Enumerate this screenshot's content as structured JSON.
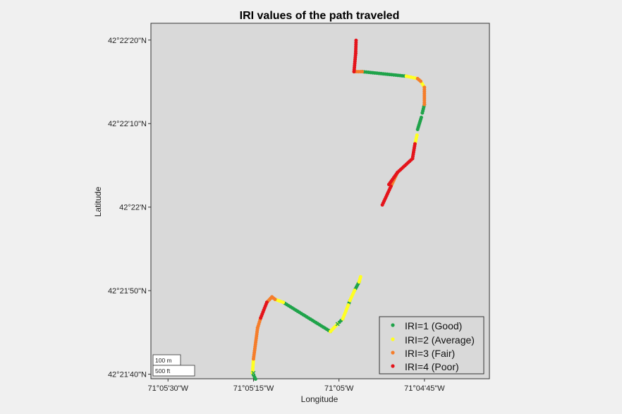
{
  "chart_data": {
    "type": "scatter",
    "title": "IRI values of the path traveled",
    "xlabel": "Longitude",
    "ylabel": "Latitude",
    "xlim": [
      -71.0925,
      -71.076
    ],
    "ylim": [
      42.36096,
      42.37278
    ],
    "x_ticks": [
      {
        "value": -71.091667,
        "label": "71°05'30\"W"
      },
      {
        "value": -71.0875,
        "label": "71°05'15\"W"
      },
      {
        "value": -71.083333,
        "label": "71°05'W"
      },
      {
        "value": -71.079167,
        "label": "71°04'45\"W"
      }
    ],
    "y_ticks": [
      {
        "value": 42.361111,
        "label": "42°21'40\"N"
      },
      {
        "value": 42.363889,
        "label": "42°21'50\"N"
      },
      {
        "value": 42.366667,
        "label": "42°22'N"
      },
      {
        "value": 42.369444,
        "label": "42°22'10\"N"
      },
      {
        "value": 42.372222,
        "label": "42°22'20\"N"
      }
    ],
    "grid": false,
    "legend_position": "bottom-right",
    "scale_bar": {
      "metric": "100 m",
      "imperial": "500 ft"
    },
    "series": [
      {
        "name": "IRI=1 (Good)",
        "color": "#1fa34a",
        "segments": [
          [
            [
              -71.0874,
              42.36095
            ],
            [
              -71.08755,
              42.36115
            ]
          ],
          [
            [
              -71.08605,
              42.3635
            ],
            [
              -71.08375,
              42.36253
            ]
          ],
          [
            [
              -71.0834,
              42.36278
            ],
            [
              -71.08315,
              42.36295
            ]
          ],
          [
            [
              -71.08288,
              42.36341
            ],
            [
              -71.0828,
              42.36356
            ]
          ],
          [
            [
              -71.08257,
              42.3639
            ],
            [
              -71.08235,
              42.36418
            ]
          ],
          [
            [
              -71.0822,
              42.37117
            ],
            [
              -71.08005,
              42.37102
            ]
          ],
          [
            [
              -71.07917,
              42.37008
            ],
            [
              -71.07927,
              42.3698
            ]
          ],
          [
            [
              -71.07932,
              42.36965
            ],
            [
              -71.0795,
              42.36925
            ]
          ]
        ]
      },
      {
        "name": "IRI=2 (Average)",
        "color": "#ffff22",
        "segments": [
          [
            [
              -71.08755,
              42.36115
            ],
            [
              -71.0875,
              42.36162
            ]
          ],
          [
            [
              -71.08645,
              42.3636
            ],
            [
              -71.08605,
              42.3635
            ]
          ],
          [
            [
              -71.08375,
              42.36253
            ],
            [
              -71.0834,
              42.36278
            ]
          ],
          [
            [
              -71.08315,
              42.36295
            ],
            [
              -71.08288,
              42.36341
            ]
          ],
          [
            [
              -71.0828,
              42.36356
            ],
            [
              -71.08257,
              42.3639
            ]
          ],
          [
            [
              -71.08235,
              42.36418
            ],
            [
              -71.08228,
              42.36435
            ]
          ],
          [
            [
              -71.08005,
              42.37102
            ],
            [
              -71.0795,
              42.37094
            ]
          ],
          [
            [
              -71.07935,
              42.37085
            ],
            [
              -71.07917,
              42.37065
            ]
          ],
          [
            [
              -71.07953,
              42.36906
            ],
            [
              -71.07963,
              42.36877
            ]
          ]
        ]
      },
      {
        "name": "IRI=3 (Fair)",
        "color": "#f57d2a",
        "segments": [
          [
            [
              -71.0875,
              42.36162
            ],
            [
              -71.0873,
              42.36265
            ]
          ],
          [
            [
              -71.0873,
              42.36265
            ],
            [
              -71.08715,
              42.36298
            ]
          ],
          [
            [
              -71.08685,
              42.3635
            ],
            [
              -71.0866,
              42.36368
            ]
          ],
          [
            [
              -71.0866,
              42.36368
            ],
            [
              -71.08645,
              42.3636
            ]
          ],
          [
            [
              -71.0826,
              42.37117
            ],
            [
              -71.0822,
              42.37117
            ]
          ],
          [
            [
              -71.0795,
              42.37094
            ],
            [
              -71.07935,
              42.37085
            ]
          ],
          [
            [
              -71.07917,
              42.37065
            ],
            [
              -71.07917,
              42.37008
            ]
          ],
          [
            [
              -71.0808,
              42.36736
            ],
            [
              -71.08048,
              42.36782
            ]
          ]
        ]
      },
      {
        "name": "IRI=4 (Poor)",
        "color": "#e4141b",
        "segments": [
          [
            [
              -71.08715,
              42.36298
            ],
            [
              -71.08685,
              42.3635
            ]
          ],
          [
            [
              -71.0826,
              42.37117
            ],
            [
              -71.08252,
              42.37178
            ]
          ],
          [
            [
              -71.08252,
              42.37178
            ],
            [
              -71.0825,
              42.37221
            ]
          ],
          [
            [
              -71.07963,
              42.36877
            ],
            [
              -71.07975,
              42.36828
            ]
          ],
          [
            [
              -71.07975,
              42.36828
            ],
            [
              -71.08048,
              42.36782
            ]
          ],
          [
            [
              -71.08048,
              42.36782
            ],
            [
              -71.0809,
              42.36742
            ]
          ],
          [
            [
              -71.08122,
              42.36674
            ],
            [
              -71.0808,
              42.36736
            ]
          ]
        ]
      }
    ]
  }
}
